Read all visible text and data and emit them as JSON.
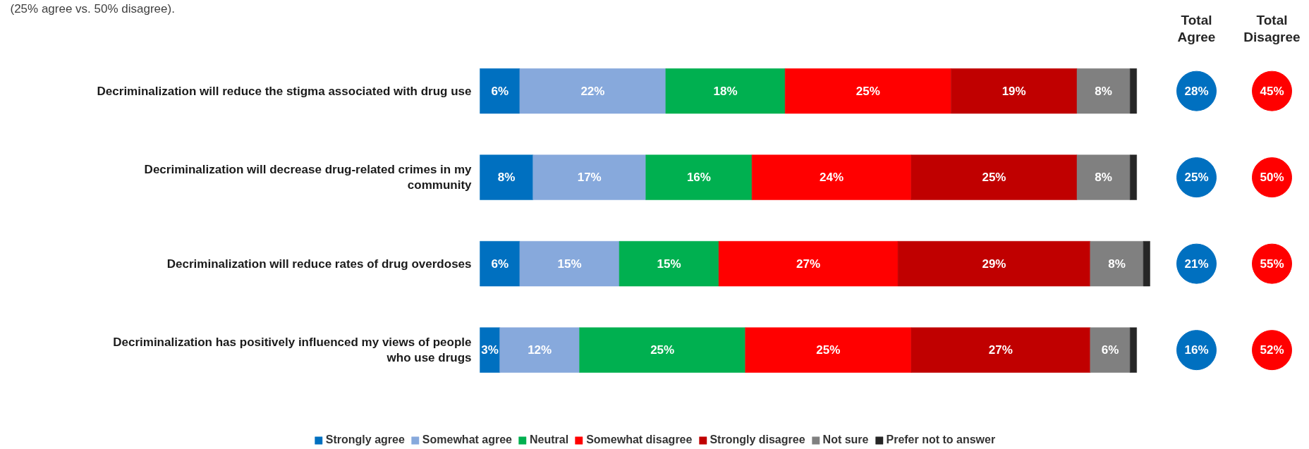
{
  "chart_data": [
    {
      "type": "bar",
      "orientation": "horizontal",
      "stacked": true,
      "legend": "bottom",
      "tick_labels": "y",
      "annotations": [
        "(25% agree vs. 50% disagree)."
      ],
      "categories": [
        "Decriminalization will reduce the stigma associated with drug use",
        "Decriminalization will decrease drug-related crimes in my community",
        "Decriminalization will reduce rates of drug overdoses",
        "Decriminalization has positively influenced my views of people who use drugs"
      ],
      "series": [
        {
          "name": "Strongly agree",
          "color": "#0070c0",
          "values": [
            6,
            8,
            6,
            3
          ],
          "value_labels": [
            "6%",
            "8%",
            "6%",
            "3%"
          ]
        },
        {
          "name": "Somewhat agree",
          "color": "#87a9dc",
          "values": [
            22,
            17,
            15,
            12
          ],
          "value_labels": [
            "22%",
            "17%",
            "15%",
            "12%"
          ]
        },
        {
          "name": "Neutral",
          "color": "#00b050",
          "values": [
            18,
            16,
            15,
            25
          ],
          "value_labels": [
            "18%",
            "16%",
            "15%",
            "25%"
          ]
        },
        {
          "name": "Somewhat disagree",
          "color": "#ff0000",
          "values": [
            25,
            24,
            27,
            25
          ],
          "value_labels": [
            "25%",
            "24%",
            "27%",
            "25%"
          ]
        },
        {
          "name": "Strongly disagree",
          "color": "#c00000",
          "values": [
            19,
            25,
            29,
            27
          ],
          "value_labels": [
            "19%",
            "25%",
            "29%",
            "27%"
          ]
        },
        {
          "name": "Not sure",
          "color": "#808080",
          "values": [
            8,
            8,
            8,
            6
          ],
          "value_labels": [
            "8%",
            "8%",
            "8%",
            "6%"
          ]
        },
        {
          "name": "Prefer not to answer",
          "color": "#262626",
          "values": [
            1,
            1,
            1,
            1
          ],
          "value_labels": [
            null,
            null,
            null,
            null
          ]
        }
      ]
    },
    {
      "type": "other",
      "categories": [
        "Total Agree",
        "Total Disagree"
      ],
      "series": [
        {
          "colors": [
            "#0070c0",
            "#ff0000"
          ],
          "values": [
            28,
            45
          ],
          "value_labels": [
            "28%",
            "45%"
          ]
        },
        {
          "colors": [
            "#0070c0",
            "#ff0000"
          ],
          "values": [
            25,
            50
          ],
          "value_labels": [
            "25%",
            "50%"
          ]
        },
        {
          "colors": [
            "#0070c0",
            "#ff0000"
          ],
          "values": [
            21,
            55
          ],
          "value_labels": [
            "21%",
            "55%"
          ]
        },
        {
          "colors": [
            "#0070c0",
            "#ff0000"
          ],
          "values": [
            16,
            52
          ],
          "value_labels": [
            "16%",
            "52%"
          ]
        }
      ]
    }
  ]
}
